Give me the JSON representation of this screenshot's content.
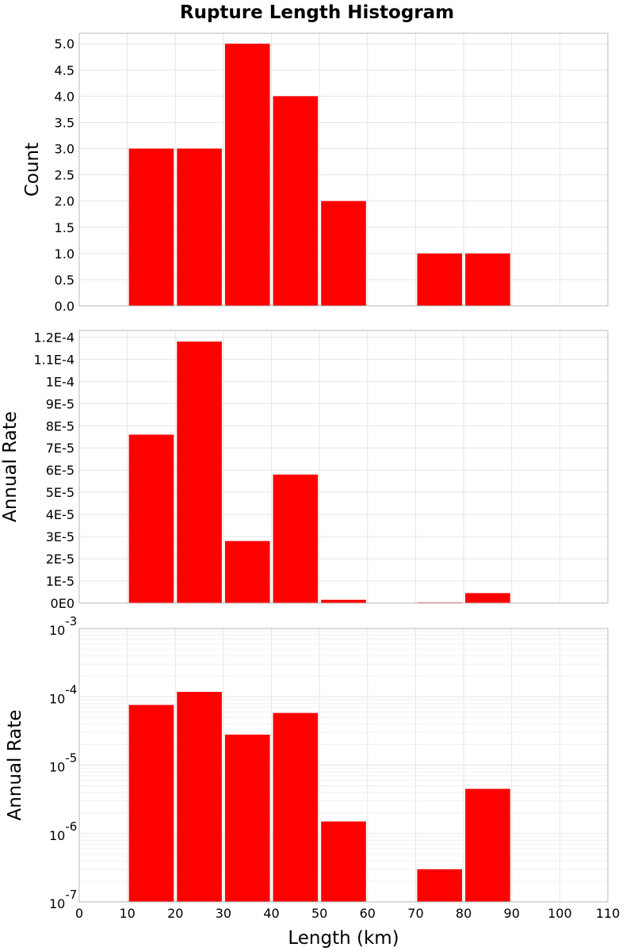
{
  "title": "Rupture Length Histogram",
  "colors": {
    "bar": "#ff0000",
    "grid": "#e6e6e6",
    "frame": "#b8b8b8"
  },
  "chart_data": [
    {
      "type": "bar",
      "panel": "count",
      "ylabel": "Count",
      "xlim": [
        0,
        110
      ],
      "ylim": [
        0,
        5.2
      ],
      "yticks": [
        0,
        0.5,
        1,
        1.5,
        2,
        2.5,
        3,
        3.5,
        4,
        4.5,
        5
      ],
      "ytick_labels": [
        "0.0",
        "0.5",
        "1.0",
        "1.5",
        "2.0",
        "2.5",
        "3.0",
        "3.5",
        "4.0",
        "4.5",
        "5.0"
      ],
      "bins": [
        [
          10,
          20
        ],
        [
          20,
          30
        ],
        [
          30,
          40
        ],
        [
          40,
          50
        ],
        [
          50,
          60
        ],
        [
          70,
          80
        ],
        [
          80,
          90
        ]
      ],
      "values": [
        3,
        3,
        5,
        4,
        2,
        1,
        1
      ]
    },
    {
      "type": "bar",
      "panel": "rate-linear",
      "ylabel": "Annual Rate",
      "xlim": [
        0,
        110
      ],
      "ylim": [
        0,
        0.000123
      ],
      "yticks": [
        0,
        1e-05,
        2e-05,
        3e-05,
        4e-05,
        5e-05,
        6e-05,
        7e-05,
        8e-05,
        9e-05,
        0.0001,
        0.00011,
        0.00012
      ],
      "ytick_labels": [
        "0E0",
        "1E-5",
        "2E-5",
        "3E-5",
        "4E-5",
        "5E-5",
        "6E-5",
        "7E-5",
        "8E-5",
        "9E-5",
        "1E-4",
        "1.1E-4",
        "1.2E-4"
      ],
      "bins": [
        [
          10,
          20
        ],
        [
          20,
          30
        ],
        [
          30,
          40
        ],
        [
          40,
          50
        ],
        [
          50,
          60
        ],
        [
          70,
          80
        ],
        [
          80,
          90
        ]
      ],
      "values": [
        7.6e-05,
        0.000118,
        2.8e-05,
        5.8e-05,
        1.5e-06,
        3e-07,
        4.5e-06
      ]
    },
    {
      "type": "bar",
      "panel": "rate-log",
      "ylabel": "Annual Rate",
      "yscale": "log",
      "xlim": [
        0,
        110
      ],
      "ylim_exponent": [
        -7,
        -3
      ],
      "ytick_exponents": [
        "-3",
        "-4",
        "-5",
        "-6",
        "-7"
      ],
      "ytick_base": "10",
      "xlabel": "Length (km)",
      "xtick_labels": [
        "0",
        "10",
        "20",
        "30",
        "40",
        "50",
        "60",
        "70",
        "80",
        "90",
        "100",
        "110"
      ],
      "bins": [
        [
          10,
          20
        ],
        [
          20,
          30
        ],
        [
          30,
          40
        ],
        [
          40,
          50
        ],
        [
          50,
          60
        ],
        [
          70,
          80
        ],
        [
          80,
          90
        ]
      ],
      "values": [
        7.6e-05,
        0.000118,
        2.8e-05,
        5.8e-05,
        1.5e-06,
        3e-07,
        4.5e-06
      ]
    }
  ]
}
